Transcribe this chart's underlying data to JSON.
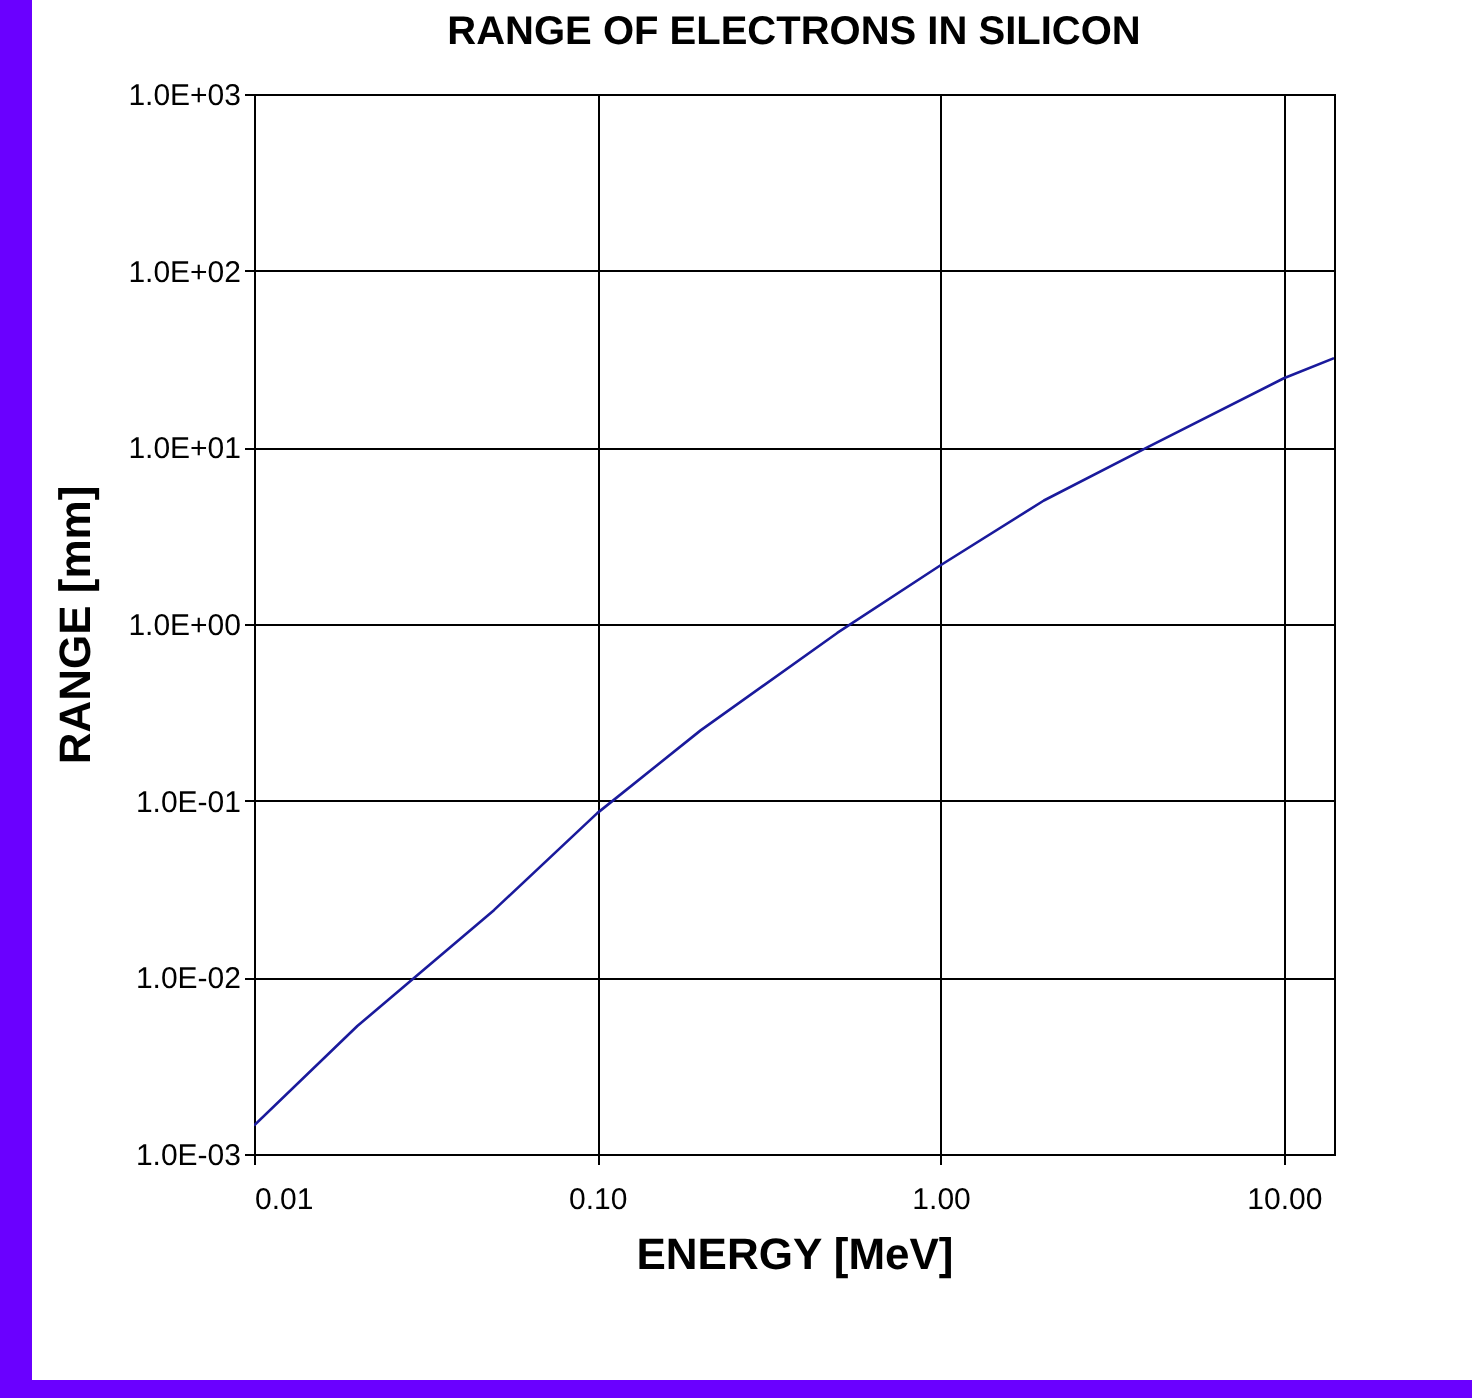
{
  "chart_data": {
    "type": "line",
    "title": "RANGE OF ELECTRONS IN SILICON",
    "xlabel": "ENERGY [MeV]",
    "ylabel": "RANGE [mm]",
    "log": "xy",
    "grid": true,
    "marker": "none",
    "line_style": "solid",
    "xlim": [
      0.01,
      14
    ],
    "ylim": [
      0.001,
      1000
    ],
    "xticks": [
      {
        "value": 0.01,
        "label": "0.01"
      },
      {
        "value": 0.1,
        "label": "0.10"
      },
      {
        "value": 1,
        "label": "1.00"
      },
      {
        "value": 10,
        "label": "10.00"
      }
    ],
    "yticks": [
      {
        "value": 0.001,
        "label": "1.0E-03"
      },
      {
        "value": 0.01,
        "label": "1.0E-02"
      },
      {
        "value": 0.1,
        "label": "1.0E-01"
      },
      {
        "value": 1,
        "label": "1.0E+00"
      },
      {
        "value": 10,
        "label": "1.0E+01"
      },
      {
        "value": 100,
        "label": "1.0E+02"
      },
      {
        "value": 1000,
        "label": "1.0E+03"
      }
    ],
    "x": [
      0.01,
      0.02,
      0.05,
      0.1,
      0.2,
      0.5,
      1,
      2,
      4,
      10,
      14
    ],
    "series": [
      {
        "color": "#1a1a9c",
        "values": [
          0.00145,
          0.0053,
          0.024,
          0.085,
          0.25,
          0.89,
          2.15,
          5.0,
          10,
          24.6,
          32
        ]
      }
    ]
  }
}
